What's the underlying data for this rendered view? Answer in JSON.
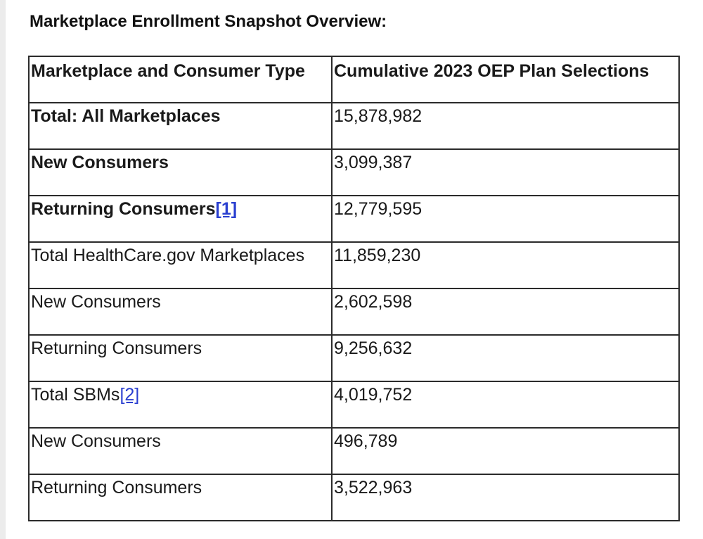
{
  "title": "Marketplace Enrollment Snapshot Overview:",
  "table": {
    "headers": [
      "Marketplace and Consumer Type",
      "Cumulative 2023 OEP Plan Selections"
    ],
    "rows": [
      {
        "label": "Total: All Marketplaces",
        "footnote": "",
        "value": "15,878,982",
        "bold": true
      },
      {
        "label": "New Consumers",
        "footnote": "",
        "value": "3,099,387",
        "bold": true
      },
      {
        "label": "Returning Consumers",
        "footnote": "[1]",
        "value": "12,779,595",
        "bold": true
      },
      {
        "label": "Total HealthCare.gov Marketplaces",
        "footnote": "",
        "value": "11,859,230",
        "bold": false
      },
      {
        "label": "New Consumers",
        "footnote": "",
        "value": "2,602,598",
        "bold": false
      },
      {
        "label": "Returning Consumers",
        "footnote": "",
        "value": "9,256,632",
        "bold": false
      },
      {
        "label": "Total SBMs",
        "footnote": "[2]",
        "value": "4,019,752",
        "bold": false
      },
      {
        "label": "New Consumers",
        "footnote": "",
        "value": "496,789",
        "bold": false
      },
      {
        "label": "Returning Consumers",
        "footnote": "",
        "value": "3,522,963",
        "bold": false
      }
    ]
  },
  "colors": {
    "link": "#2a3fd0",
    "border": "#2b2b2b",
    "text": "#1a1a1a"
  }
}
